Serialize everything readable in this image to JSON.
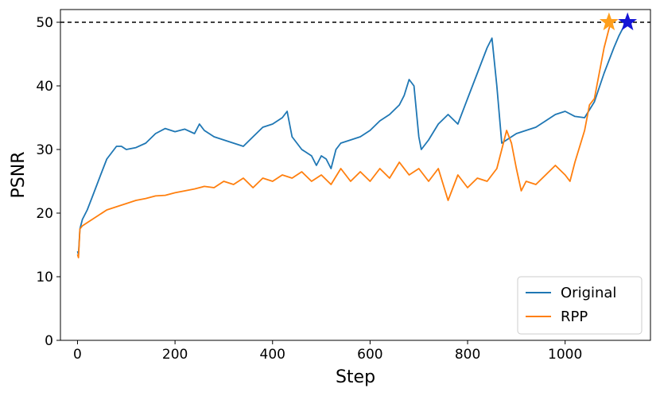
{
  "chart_data": {
    "type": "line",
    "xlabel": "Step",
    "ylabel": "PSNR",
    "xlim": [
      -35,
      1175
    ],
    "ylim": [
      0,
      52
    ],
    "xticks": [
      0,
      200,
      400,
      600,
      800,
      1000
    ],
    "yticks": [
      0,
      10,
      20,
      30,
      40,
      50
    ],
    "reference_line": {
      "y": 50,
      "style": "dashed",
      "color": "#000000"
    },
    "legend_position": "lower-right",
    "series": [
      {
        "name": "Original",
        "color": "#1f77b4",
        "points": [
          [
            0,
            14
          ],
          [
            2,
            13.5
          ],
          [
            5,
            17.5
          ],
          [
            10,
            19
          ],
          [
            20,
            20.5
          ],
          [
            30,
            22.5
          ],
          [
            40,
            24.5
          ],
          [
            50,
            26.5
          ],
          [
            60,
            28.5
          ],
          [
            70,
            29.5
          ],
          [
            80,
            30.5
          ],
          [
            90,
            30.5
          ],
          [
            100,
            30
          ],
          [
            120,
            30.3
          ],
          [
            140,
            31
          ],
          [
            160,
            32.5
          ],
          [
            180,
            33.3
          ],
          [
            200,
            32.8
          ],
          [
            220,
            33.2
          ],
          [
            240,
            32.5
          ],
          [
            250,
            34
          ],
          [
            260,
            33
          ],
          [
            280,
            32
          ],
          [
            300,
            31.5
          ],
          [
            320,
            31
          ],
          [
            340,
            30.5
          ],
          [
            360,
            32
          ],
          [
            380,
            33.5
          ],
          [
            400,
            34
          ],
          [
            420,
            35
          ],
          [
            430,
            36
          ],
          [
            440,
            32
          ],
          [
            460,
            30
          ],
          [
            480,
            29
          ],
          [
            490,
            27.5
          ],
          [
            500,
            29
          ],
          [
            510,
            28.5
          ],
          [
            520,
            27
          ],
          [
            530,
            30
          ],
          [
            540,
            31
          ],
          [
            560,
            31.5
          ],
          [
            580,
            32
          ],
          [
            600,
            33
          ],
          [
            620,
            34.5
          ],
          [
            640,
            35.5
          ],
          [
            660,
            37
          ],
          [
            670,
            38.5
          ],
          [
            680,
            41
          ],
          [
            690,
            40
          ],
          [
            700,
            32
          ],
          [
            705,
            30
          ],
          [
            720,
            31.5
          ],
          [
            740,
            34
          ],
          [
            760,
            35.5
          ],
          [
            780,
            34
          ],
          [
            800,
            38
          ],
          [
            820,
            42
          ],
          [
            840,
            46
          ],
          [
            850,
            47.5
          ],
          [
            860,
            40
          ],
          [
            870,
            31
          ],
          [
            880,
            31.5
          ],
          [
            900,
            32.5
          ],
          [
            920,
            33
          ],
          [
            940,
            33.5
          ],
          [
            960,
            34.5
          ],
          [
            980,
            35.5
          ],
          [
            1000,
            36
          ],
          [
            1020,
            35.2
          ],
          [
            1040,
            35
          ],
          [
            1060,
            37.5
          ],
          [
            1080,
            42
          ],
          [
            1100,
            46
          ],
          [
            1110,
            47.8
          ],
          [
            1120,
            49.3
          ],
          [
            1128,
            50
          ]
        ]
      },
      {
        "name": "RPP",
        "color": "#ff7f0e",
        "points": [
          [
            0,
            13.5
          ],
          [
            2,
            13
          ],
          [
            5,
            17.5
          ],
          [
            10,
            18
          ],
          [
            20,
            18.5
          ],
          [
            40,
            19.5
          ],
          [
            60,
            20.5
          ],
          [
            80,
            21
          ],
          [
            100,
            21.5
          ],
          [
            120,
            22
          ],
          [
            140,
            22.3
          ],
          [
            160,
            22.7
          ],
          [
            180,
            22.8
          ],
          [
            200,
            23.2
          ],
          [
            220,
            23.5
          ],
          [
            240,
            23.8
          ],
          [
            260,
            24.2
          ],
          [
            280,
            24
          ],
          [
            300,
            25
          ],
          [
            320,
            24.5
          ],
          [
            340,
            25.5
          ],
          [
            360,
            24
          ],
          [
            380,
            25.5
          ],
          [
            400,
            25
          ],
          [
            420,
            26
          ],
          [
            440,
            25.5
          ],
          [
            460,
            26.5
          ],
          [
            480,
            25
          ],
          [
            500,
            26
          ],
          [
            520,
            24.5
          ],
          [
            540,
            27
          ],
          [
            560,
            25
          ],
          [
            580,
            26.5
          ],
          [
            600,
            25
          ],
          [
            620,
            27
          ],
          [
            640,
            25.5
          ],
          [
            660,
            28
          ],
          [
            680,
            26
          ],
          [
            700,
            27
          ],
          [
            720,
            25
          ],
          [
            740,
            27
          ],
          [
            760,
            22
          ],
          [
            780,
            26
          ],
          [
            800,
            24
          ],
          [
            820,
            25.5
          ],
          [
            840,
            25
          ],
          [
            860,
            27
          ],
          [
            870,
            30
          ],
          [
            880,
            33
          ],
          [
            890,
            31
          ],
          [
            900,
            27
          ],
          [
            910,
            23.5
          ],
          [
            920,
            25
          ],
          [
            940,
            24.5
          ],
          [
            960,
            26
          ],
          [
            980,
            27.5
          ],
          [
            1000,
            26
          ],
          [
            1010,
            25
          ],
          [
            1020,
            28
          ],
          [
            1040,
            33
          ],
          [
            1050,
            37
          ],
          [
            1060,
            38
          ],
          [
            1070,
            42
          ],
          [
            1080,
            46
          ],
          [
            1090,
            49
          ],
          [
            1095,
            50
          ]
        ]
      }
    ],
    "markers": [
      {
        "series": "RPP",
        "x": 1090,
        "y": 50,
        "shape": "star",
        "color": "#ff9f1c"
      },
      {
        "series": "Original",
        "x": 1128,
        "y": 50,
        "shape": "star",
        "color": "#1515d6"
      }
    ]
  }
}
